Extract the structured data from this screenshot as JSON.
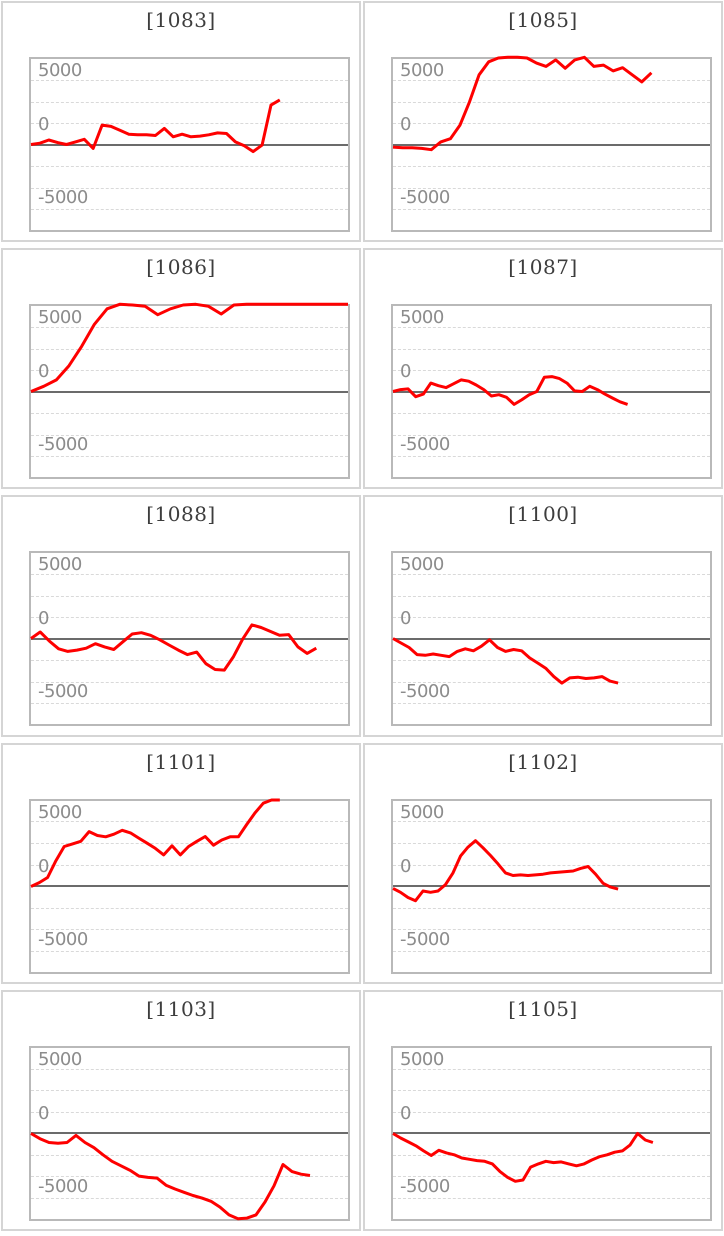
{
  "page": {
    "background": "#ffffff"
  },
  "styles": {
    "series_color": "#fe0000",
    "zero_axis_color": "#6b6b6b",
    "gridline_color": "#d9d9d9",
    "plot_border_color": "#b9b9b9",
    "panel_border_color": "#d5d5d5",
    "title_color": "#3d3d3d",
    "tick_label_color": "#8c8c8c"
  },
  "axes": {
    "ylim": [
      -6620,
      6620
    ],
    "ytick_labels": [
      "5000",
      "0",
      "-5000"
    ],
    "ytick_values": [
      5000,
      0,
      -5000
    ],
    "gridline_values": [
      5000,
      3333,
      1667,
      0,
      -1667,
      -3333,
      -5000
    ],
    "grid_style": "dashed",
    "zero_axis": "solid"
  },
  "chart_data": [
    {
      "type": "line",
      "title": "[1083]",
      "end_frac": 0.785,
      "values": [
        0,
        100,
        350,
        150,
        0,
        200,
        400,
        -300,
        1500,
        1400,
        1100,
        800,
        750,
        750,
        700,
        1250,
        600,
        800,
        600,
        650,
        750,
        900,
        850,
        200,
        -100,
        -550,
        -50,
        3050,
        3450
      ]
    },
    {
      "type": "line",
      "title": "[1085]",
      "end_frac": 0.815,
      "values": [
        -200,
        -250,
        -250,
        -300,
        -400,
        200,
        450,
        1500,
        3300,
        5400,
        6400,
        6700,
        6750,
        6750,
        6700,
        6300,
        6050,
        6550,
        5900,
        6550,
        6750,
        6050,
        6150,
        5700,
        5950,
        5400,
        4850,
        5550
      ]
    },
    {
      "type": "line",
      "title": "[1086]",
      "end_frac": 1.0,
      "values": [
        0,
        400,
        900,
        2000,
        3500,
        5200,
        6400,
        6750,
        6700,
        6600,
        5950,
        6400,
        6700,
        6750,
        6600,
        6000,
        6700,
        6750,
        6750,
        6750,
        6750,
        6750,
        6750,
        6750,
        6750,
        6750
      ]
    },
    {
      "type": "line",
      "title": "[1087]",
      "end_frac": 0.74,
      "values": [
        0,
        150,
        200,
        -400,
        -200,
        650,
        450,
        300,
        600,
        900,
        800,
        500,
        150,
        -350,
        -250,
        -450,
        -1000,
        -650,
        -250,
        0,
        1100,
        1150,
        1000,
        650,
        50,
        0,
        400,
        150,
        -200,
        -500,
        -800,
        -1000
      ]
    },
    {
      "type": "line",
      "title": "[1088]",
      "end_frac": 0.9,
      "values": [
        0,
        500,
        -200,
        -800,
        -1000,
        -900,
        -750,
        -400,
        -650,
        -850,
        -250,
        350,
        450,
        250,
        -100,
        -500,
        -900,
        -1250,
        -1050,
        -1950,
        -2400,
        -2450,
        -1400,
        -50,
        1050,
        850,
        550,
        250,
        300,
        -650,
        -1150,
        -750
      ]
    },
    {
      "type": "line",
      "title": "[1100]",
      "end_frac": 0.71,
      "values": [
        0,
        -350,
        -700,
        -1250,
        -1300,
        -1200,
        -1300,
        -1400,
        -1000,
        -800,
        -950,
        -600,
        -100,
        -700,
        -1000,
        -850,
        -950,
        -1500,
        -1900,
        -2300,
        -2950,
        -3450,
        -3050,
        -3000,
        -3100,
        -3050,
        -2950,
        -3300,
        -3450
      ]
    },
    {
      "type": "line",
      "title": "[1101]",
      "end_frac": 0.785,
      "values": [
        0,
        300,
        700,
        2000,
        3100,
        3300,
        3500,
        4250,
        3950,
        3850,
        4050,
        4350,
        4150,
        3750,
        3350,
        2950,
        2450,
        3150,
        2450,
        3100,
        3500,
        3875,
        3200,
        3600,
        3850,
        3850,
        4800,
        5700,
        6450,
        6700,
        6700
      ]
    },
    {
      "type": "line",
      "title": "[1102]",
      "end_frac": 0.71,
      "values": [
        -150,
        -450,
        -850,
        -1100,
        -350,
        -450,
        -350,
        150,
        1050,
        2350,
        3050,
        3550,
        3000,
        2400,
        1750,
        1050,
        850,
        900,
        850,
        900,
        950,
        1050,
        1100,
        1150,
        1200,
        1400,
        1550,
        950,
        250,
        -50,
        -200
      ]
    },
    {
      "type": "line",
      "title": "[1103]",
      "end_frac": 0.88,
      "values": [
        0,
        -400,
        -700,
        -750,
        -700,
        -150,
        -700,
        -1100,
        -1650,
        -2150,
        -2500,
        -2850,
        -3300,
        -3400,
        -3450,
        -4000,
        -4300,
        -4550,
        -4800,
        -5000,
        -5250,
        -5700,
        -6300,
        -6600,
        -6550,
        -6300,
        -5300,
        -4050,
        -2400,
        -2950,
        -3150,
        -3250
      ]
    },
    {
      "type": "line",
      "title": "[1105]",
      "end_frac": 0.82,
      "values": [
        0,
        -350,
        -650,
        -950,
        -1350,
        -1700,
        -1300,
        -1500,
        -1650,
        -1900,
        -2000,
        -2100,
        -2150,
        -2350,
        -2950,
        -3400,
        -3700,
        -3600,
        -2600,
        -2350,
        -2150,
        -2250,
        -2200,
        -2350,
        -2500,
        -2350,
        -2050,
        -1800,
        -1650,
        -1450,
        -1350,
        -900,
        0,
        -500,
        -700
      ]
    }
  ]
}
